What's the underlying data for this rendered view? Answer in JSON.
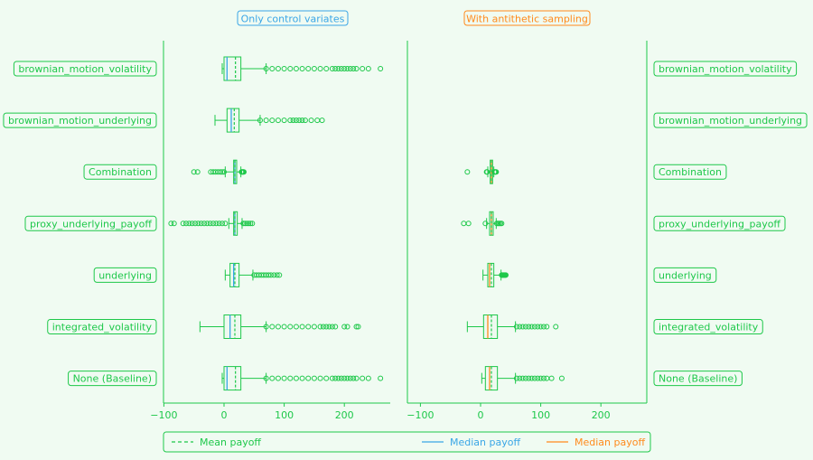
{
  "colors": {
    "background": "#f0fbf2",
    "green": "#1ec84a",
    "blue": "#3aa6e6",
    "orange": "#ff8a1c",
    "box_fill": "#eef9f0"
  },
  "chart_data": {
    "type": "boxplot",
    "x_ticks": [
      -100,
      0,
      100,
      200
    ],
    "xlim": [
      -100,
      260
    ],
    "categories": [
      "brownian_motion_volatility",
      "brownian_motion_underlying",
      "Combination",
      "proxy_underlying_payoff",
      "underlying",
      "integrated_volatility",
      "None (Baseline)"
    ],
    "panels": [
      {
        "title": "Only control variates",
        "title_color": "#3aa6e6",
        "median_color": "#3aa6e6",
        "boxes": [
          {
            "category": "brownian_motion_volatility",
            "whisker_low": -3,
            "q1": 0,
            "median": 5,
            "q3": 28,
            "whisker_high": 70,
            "mean": 19,
            "outliers": [
              70,
              80,
              90,
              100,
              110,
              120,
              130,
              140,
              150,
              160,
              170,
              180,
              185,
              190,
              195,
              200,
              205,
              210,
              215,
              220,
              230,
              240,
              260
            ]
          },
          {
            "category": "brownian_motion_underlying",
            "whisker_low": -15,
            "q1": 5,
            "median": 12,
            "q3": 25,
            "whisker_high": 60,
            "mean": 17,
            "outliers": [
              60,
              70,
              80,
              90,
              100,
              110,
              115,
              120,
              125,
              130,
              135,
              145,
              155,
              163
            ]
          },
          {
            "category": "Combination",
            "whisker_low": 2,
            "q1": 16,
            "median": 18,
            "q3": 21,
            "whisker_high": 28,
            "mean": 18,
            "outliers": [
              -50,
              -44,
              -22,
              -18,
              -14,
              -10,
              -6,
              -3,
              0,
              29,
              30,
              31,
              32,
              33
            ]
          },
          {
            "category": "proxy_underlying_payoff",
            "whisker_low": 8,
            "q1": 16,
            "median": 18,
            "q3": 22,
            "whisker_high": 30,
            "mean": 18,
            "outliers": [
              -88,
              -83,
              -68,
              -63,
              -58,
              -53,
              -48,
              -43,
              -38,
              -33,
              -28,
              -23,
              -18,
              -13,
              -8,
              -3,
              2,
              32,
              35,
              38,
              41,
              44,
              47
            ]
          },
          {
            "category": "underlying",
            "whisker_low": 2,
            "q1": 10,
            "median": 16,
            "q3": 25,
            "whisker_high": 48,
            "mean": 18,
            "outliers": [
              50,
              54,
              58,
              62,
              66,
              70,
              74,
              78,
              83,
              88,
              92
            ]
          },
          {
            "category": "integrated_volatility",
            "whisker_low": -40,
            "q1": 0,
            "median": 10,
            "q3": 28,
            "whisker_high": 70,
            "mean": 18,
            "outliers": [
              70,
              80,
              90,
              100,
              110,
              120,
              130,
              140,
              150,
              160,
              165,
              170,
              175,
              180,
              185,
              200,
              205,
              220,
              223
            ]
          },
          {
            "category": "None (Baseline)",
            "whisker_low": -3,
            "q1": 0,
            "median": 5,
            "q3": 28,
            "whisker_high": 70,
            "mean": 19,
            "outliers": [
              70,
              80,
              90,
              100,
              110,
              120,
              130,
              140,
              150,
              160,
              170,
              180,
              185,
              190,
              195,
              200,
              205,
              210,
              215,
              220,
              230,
              240,
              260
            ]
          }
        ]
      },
      {
        "title": "With antithetic sampling",
        "title_color": "#ff8a1c",
        "median_color": "#ff8a1c",
        "boxes": [
          {
            "category": "Combination",
            "whisker_low": 12,
            "q1": 16,
            "median": 18,
            "q3": 20,
            "whisker_high": 22,
            "mean": 18,
            "outliers": [
              -22,
              10,
              11,
              23,
              24,
              25,
              26
            ]
          },
          {
            "category": "proxy_underlying_payoff",
            "whisker_low": 10,
            "q1": 15,
            "median": 18,
            "q3": 21,
            "whisker_high": 26,
            "mean": 18,
            "outliers": [
              -28,
              -20,
              8,
              27,
              29,
              31,
              33,
              35
            ]
          },
          {
            "category": "underlying",
            "whisker_low": 4,
            "q1": 12,
            "median": 15,
            "q3": 22,
            "whisker_high": 34,
            "mean": 18,
            "outliers": [
              35,
              36,
              37,
              38,
              39,
              40,
              41,
              42
            ]
          },
          {
            "category": "integrated_volatility",
            "whisker_low": -22,
            "q1": 5,
            "median": 12,
            "q3": 28,
            "whisker_high": 58,
            "mean": 18,
            "outliers": [
              60,
              65,
              70,
              75,
              80,
              85,
              90,
              95,
              100,
              105,
              110,
              125
            ]
          },
          {
            "category": "None (Baseline)",
            "whisker_low": 2,
            "q1": 8,
            "median": 15,
            "q3": 28,
            "whisker_high": 58,
            "mean": 18,
            "outliers": [
              60,
              65,
              70,
              75,
              80,
              85,
              90,
              95,
              100,
              105,
              110,
              118,
              135
            ]
          }
        ]
      }
    ],
    "legend": {
      "placement": "bottom",
      "items": [
        {
          "label": "Mean payoff",
          "style": "dashed",
          "color": "#1ec84a"
        },
        {
          "label": "Median payoff",
          "style": "solid",
          "color": "#3aa6e6"
        },
        {
          "label": "Median payoff",
          "style": "solid",
          "color": "#ff8a1c"
        }
      ]
    }
  }
}
